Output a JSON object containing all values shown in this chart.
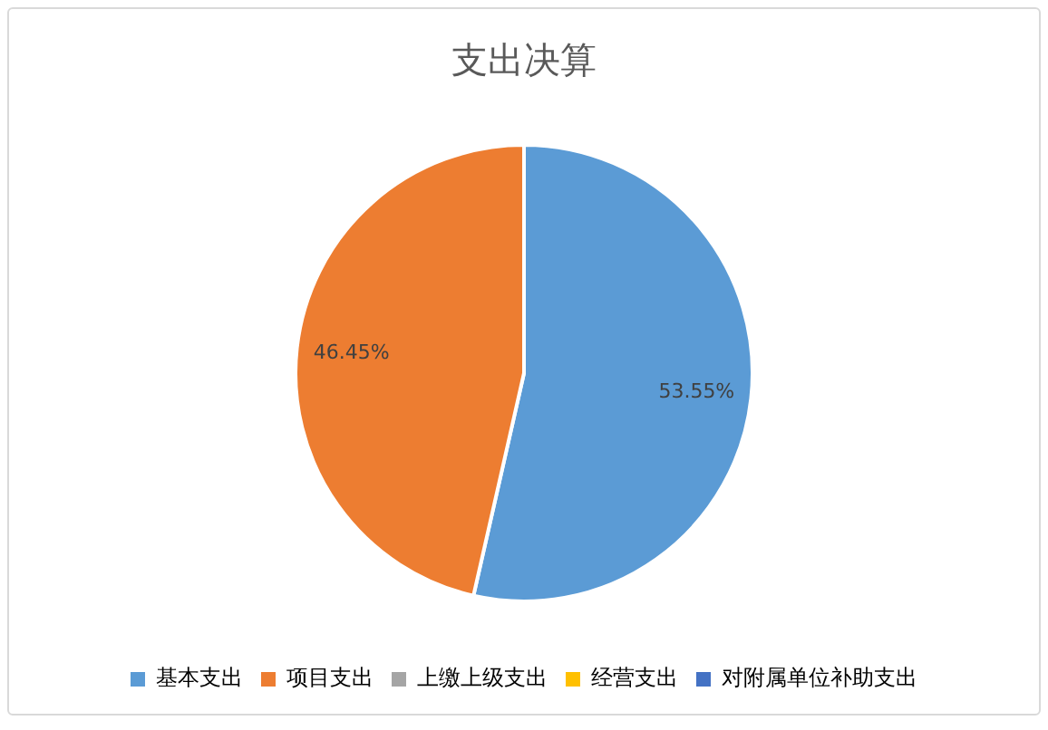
{
  "chart_data": {
    "type": "pie",
    "title": "支出决算",
    "categories": [
      "基本支出",
      "项目支出",
      "上缴上级支出",
      "经营支出",
      "对附属单位补助支出"
    ],
    "values": [
      53.55,
      46.45,
      0,
      0,
      0
    ],
    "colors": [
      "#5b9bd5",
      "#ed7d31",
      "#a5a5a5",
      "#ffc000",
      "#4472c4"
    ],
    "value_labels": [
      "53.55%",
      "46.45%",
      null,
      null,
      null
    ],
    "legend": "bottom"
  }
}
